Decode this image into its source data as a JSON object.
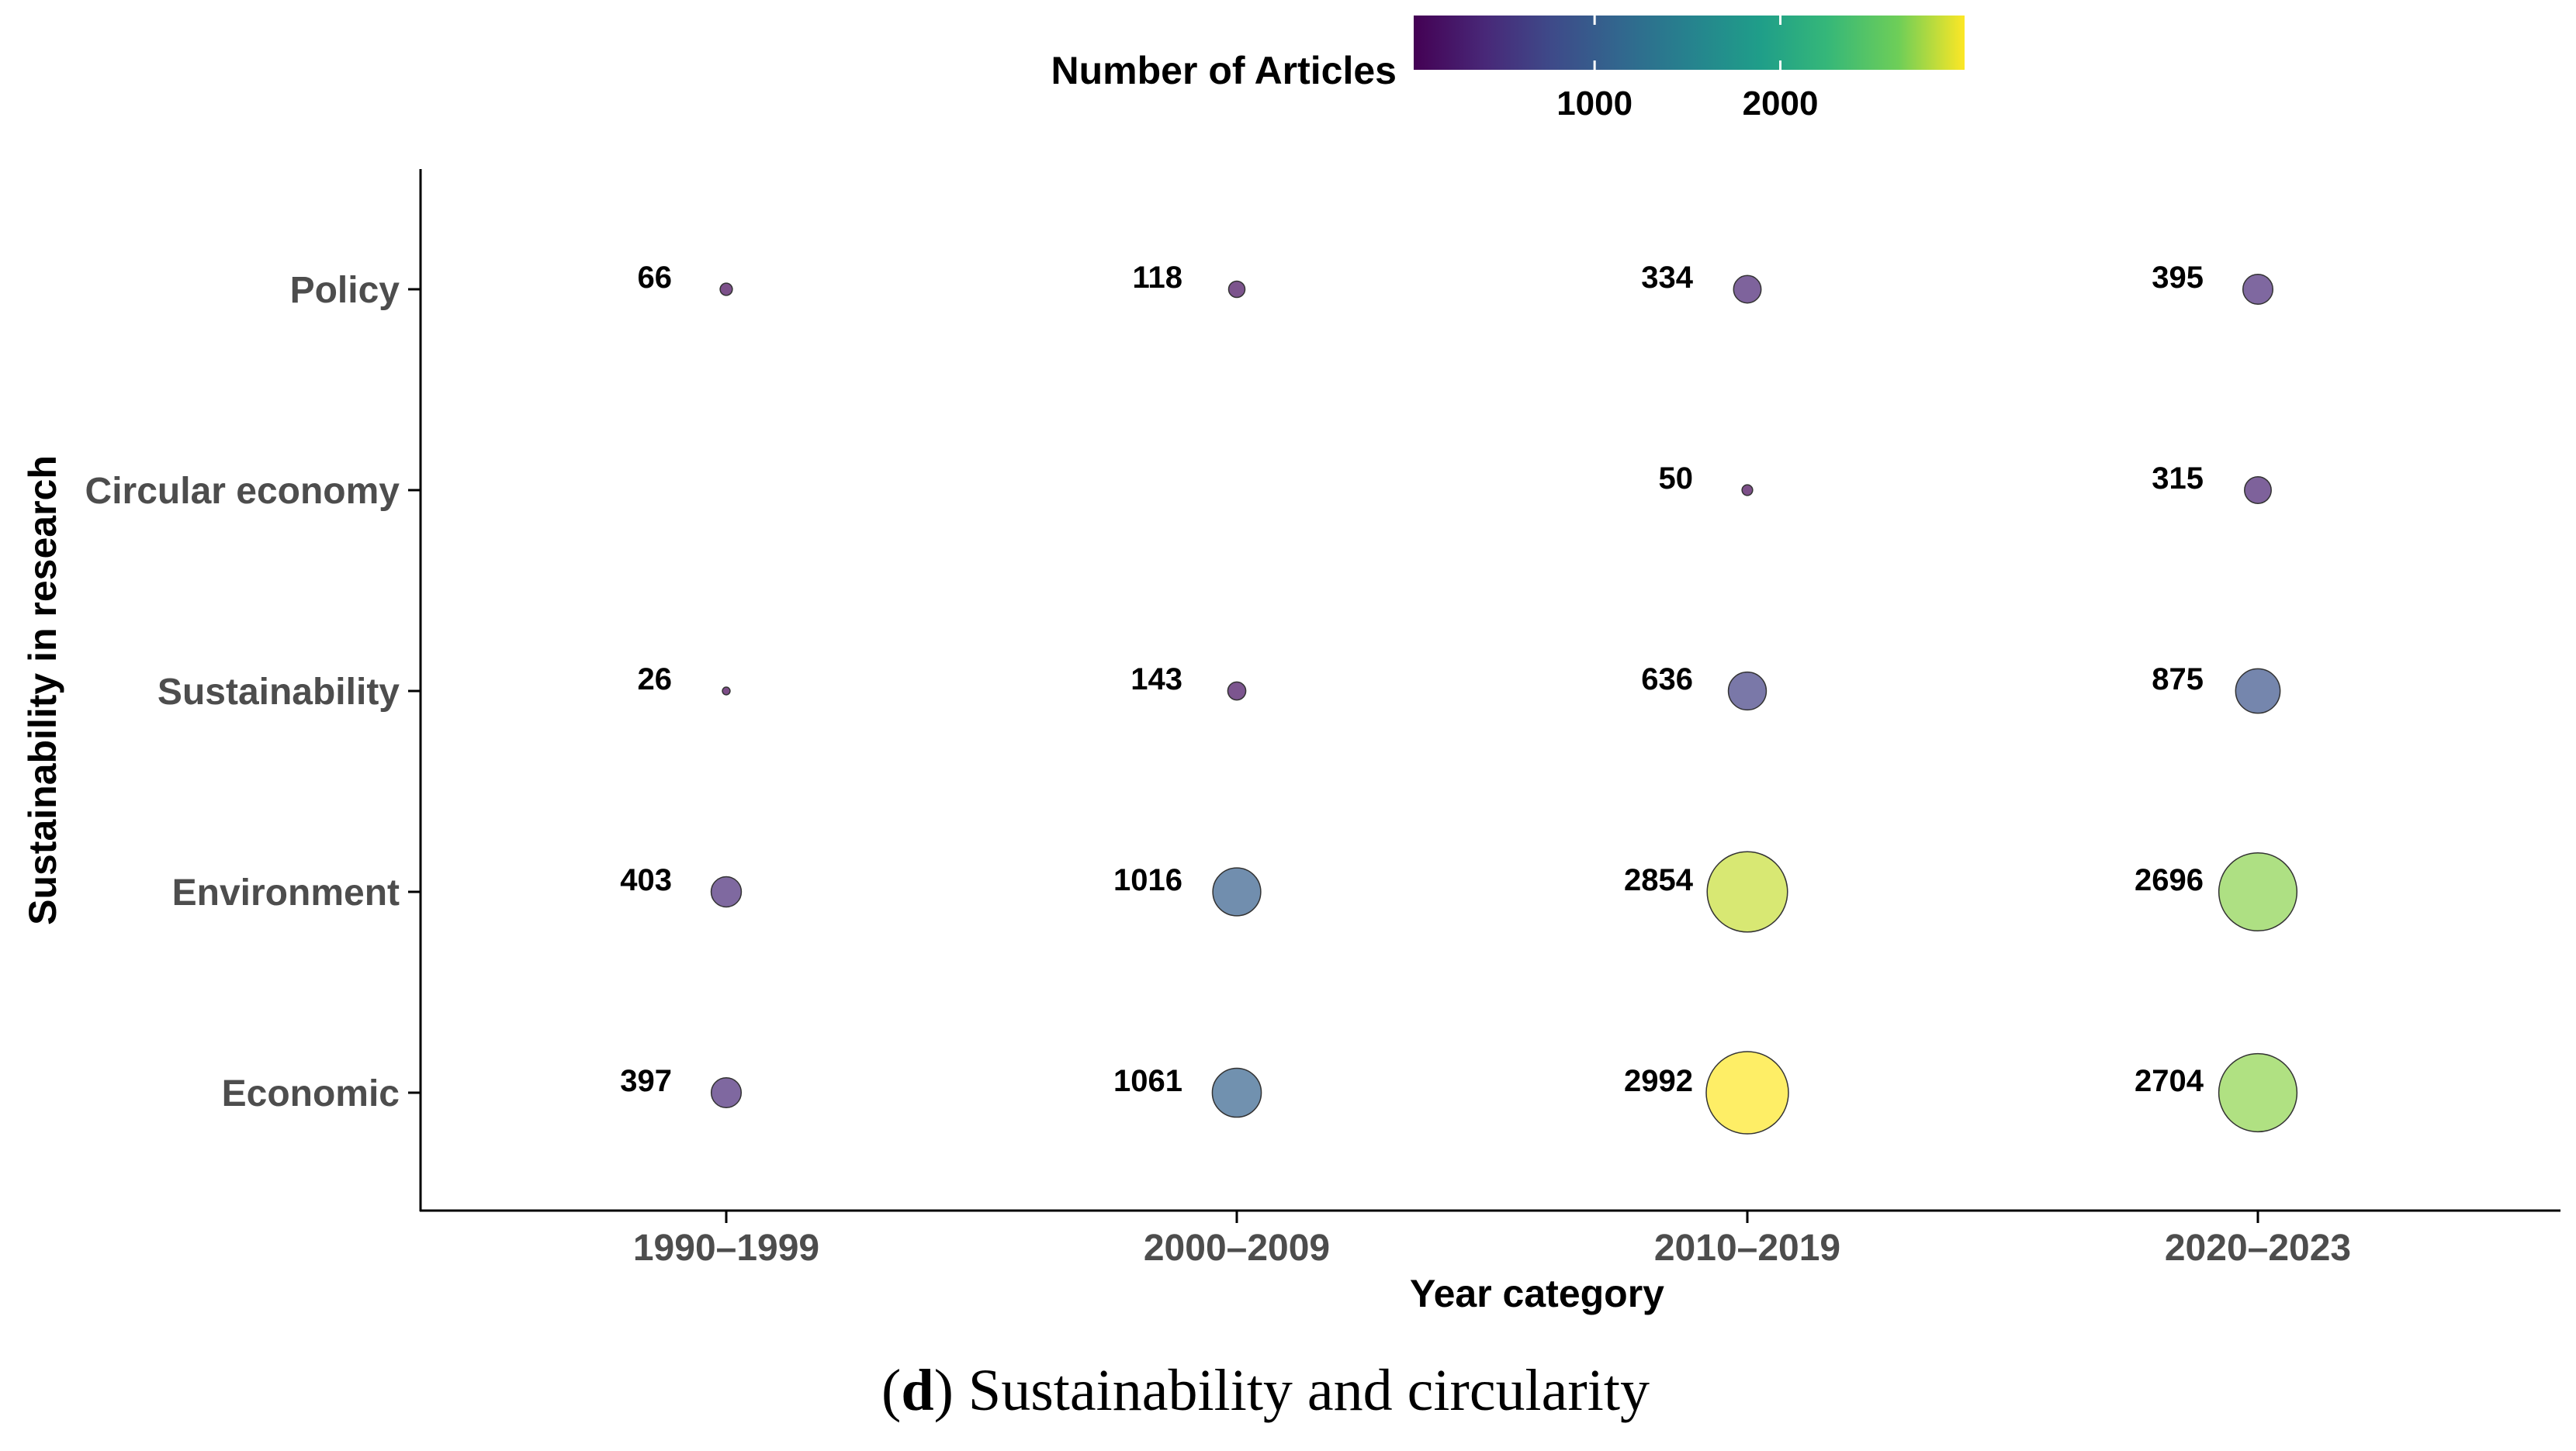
{
  "chart_data": {
    "type": "scatter",
    "subtype": "bubble",
    "xlabel": "Year category",
    "ylabel": "Sustainability in research",
    "x_categories": [
      "1990–1999",
      "2000–2009",
      "2010–2019",
      "2020–2023"
    ],
    "y_categories": [
      "Economic",
      "Environment",
      "Sustainability",
      "Circular economy",
      "Policy"
    ],
    "points": [
      {
        "x": "1990–1999",
        "y": "Policy",
        "value": 66
      },
      {
        "x": "2000–2009",
        "y": "Policy",
        "value": 118
      },
      {
        "x": "2010–2019",
        "y": "Policy",
        "value": 334
      },
      {
        "x": "2020–2023",
        "y": "Policy",
        "value": 395
      },
      {
        "x": "2010–2019",
        "y": "Circular economy",
        "value": 50
      },
      {
        "x": "2020–2023",
        "y": "Circular economy",
        "value": 315
      },
      {
        "x": "1990–1999",
        "y": "Sustainability",
        "value": 26
      },
      {
        "x": "2000–2009",
        "y": "Sustainability",
        "value": 143
      },
      {
        "x": "2010–2019",
        "y": "Sustainability",
        "value": 636
      },
      {
        "x": "2020–2023",
        "y": "Sustainability",
        "value": 875
      },
      {
        "x": "1990–1999",
        "y": "Environment",
        "value": 403
      },
      {
        "x": "2000–2009",
        "y": "Environment",
        "value": 1016
      },
      {
        "x": "2010–2019",
        "y": "Environment",
        "value": 2854
      },
      {
        "x": "2020–2023",
        "y": "Environment",
        "value": 2696
      },
      {
        "x": "1990–1999",
        "y": "Economic",
        "value": 397
      },
      {
        "x": "2000–2009",
        "y": "Economic",
        "value": 1061
      },
      {
        "x": "2010–2019",
        "y": "Economic",
        "value": 2992
      },
      {
        "x": "2020–2023",
        "y": "Economic",
        "value": 2704
      }
    ],
    "legend": {
      "title": "Number of Articles",
      "placement": "top",
      "colormap": "viridis",
      "range": [
        26,
        2992
      ],
      "ticks": [
        1000,
        2000
      ],
      "tick_labels": [
        "1000",
        "2000"
      ]
    },
    "grid": false,
    "caption": {
      "open": "(",
      "letter": "d",
      "text": ") Sustainability and circularity"
    }
  }
}
